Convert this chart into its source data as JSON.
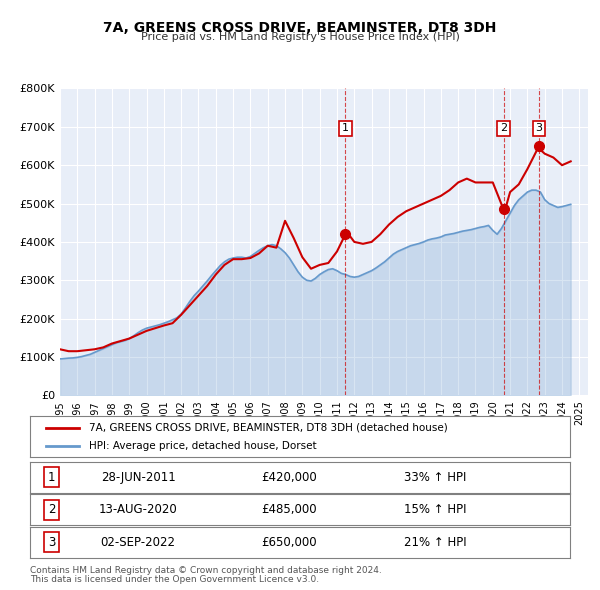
{
  "title": "7A, GREENS CROSS DRIVE, BEAMINSTER, DT8 3DH",
  "subtitle": "Price paid vs. HM Land Registry's House Price Index (HPI)",
  "ylabel": "",
  "background_color": "#ffffff",
  "plot_bg_color": "#e8eef8",
  "grid_color": "#ffffff",
  "red_line_color": "#cc0000",
  "blue_line_color": "#6699cc",
  "sale_marker_color": "#cc0000",
  "purchase_marker_color": "#cc0000",
  "ylim": [
    0,
    800000
  ],
  "yticks": [
    0,
    100000,
    200000,
    300000,
    400000,
    500000,
    600000,
    700000,
    800000
  ],
  "ytick_labels": [
    "£0",
    "£100K",
    "£200K",
    "£300K",
    "£400K",
    "£500K",
    "£600K",
    "£700K",
    "£800K"
  ],
  "xlim_start": 1995.0,
  "xlim_end": 2025.5,
  "xticks": [
    1995,
    1996,
    1997,
    1998,
    1999,
    2000,
    2001,
    2002,
    2003,
    2004,
    2005,
    2006,
    2007,
    2008,
    2009,
    2010,
    2011,
    2012,
    2013,
    2014,
    2015,
    2016,
    2017,
    2018,
    2019,
    2020,
    2021,
    2022,
    2023,
    2024,
    2025
  ],
  "sales": [
    {
      "year": 2011.49,
      "price": 420000,
      "label": "1",
      "hpi_pct": "33% ↑ HPI",
      "date": "28-JUN-2011"
    },
    {
      "year": 2020.62,
      "price": 485000,
      "label": "2",
      "hpi_pct": "15% ↑ HPI",
      "date": "13-AUG-2020"
    },
    {
      "year": 2022.67,
      "price": 650000,
      "label": "3",
      "hpi_pct": "21% ↑ HPI",
      "date": "02-SEP-2022"
    }
  ],
  "legend_line1": "7A, GREENS CROSS DRIVE, BEAMINSTER, DT8 3DH (detached house)",
  "legend_line2": "HPI: Average price, detached house, Dorset",
  "footer1": "Contains HM Land Registry data © Crown copyright and database right 2024.",
  "footer2": "This data is licensed under the Open Government Licence v3.0.",
  "hpi_data": {
    "years": [
      1995.0,
      1995.25,
      1995.5,
      1995.75,
      1996.0,
      1996.25,
      1996.5,
      1996.75,
      1997.0,
      1997.25,
      1997.5,
      1997.75,
      1998.0,
      1998.25,
      1998.5,
      1998.75,
      1999.0,
      1999.25,
      1999.5,
      1999.75,
      2000.0,
      2000.25,
      2000.5,
      2000.75,
      2001.0,
      2001.25,
      2001.5,
      2001.75,
      2002.0,
      2002.25,
      2002.5,
      2002.75,
      2003.0,
      2003.25,
      2003.5,
      2003.75,
      2004.0,
      2004.25,
      2004.5,
      2004.75,
      2005.0,
      2005.25,
      2005.5,
      2005.75,
      2006.0,
      2006.25,
      2006.5,
      2006.75,
      2007.0,
      2007.25,
      2007.5,
      2007.75,
      2008.0,
      2008.25,
      2008.5,
      2008.75,
      2009.0,
      2009.25,
      2009.5,
      2009.75,
      2010.0,
      2010.25,
      2010.5,
      2010.75,
      2011.0,
      2011.25,
      2011.5,
      2011.75,
      2012.0,
      2012.25,
      2012.5,
      2012.75,
      2013.0,
      2013.25,
      2013.5,
      2013.75,
      2014.0,
      2014.25,
      2014.5,
      2014.75,
      2015.0,
      2015.25,
      2015.5,
      2015.75,
      2016.0,
      2016.25,
      2016.5,
      2016.75,
      2017.0,
      2017.25,
      2017.5,
      2017.75,
      2018.0,
      2018.25,
      2018.5,
      2018.75,
      2019.0,
      2019.25,
      2019.5,
      2019.75,
      2020.0,
      2020.25,
      2020.5,
      2020.75,
      2021.0,
      2021.25,
      2021.5,
      2021.75,
      2022.0,
      2022.25,
      2022.5,
      2022.75,
      2023.0,
      2023.25,
      2023.5,
      2023.75,
      2024.0,
      2024.25,
      2024.5
    ],
    "values": [
      95000,
      96000,
      97000,
      97500,
      99000,
      101000,
      104000,
      107000,
      112000,
      117000,
      122000,
      127000,
      132000,
      137000,
      140000,
      143000,
      148000,
      155000,
      163000,
      170000,
      175000,
      178000,
      181000,
      184000,
      188000,
      192000,
      197000,
      202000,
      212000,
      228000,
      245000,
      260000,
      272000,
      285000,
      298000,
      312000,
      325000,
      338000,
      348000,
      355000,
      358000,
      360000,
      360000,
      358000,
      362000,
      370000,
      378000,
      385000,
      390000,
      393000,
      390000,
      382000,
      372000,
      358000,
      340000,
      322000,
      308000,
      300000,
      298000,
      305000,
      315000,
      322000,
      328000,
      330000,
      325000,
      318000,
      315000,
      310000,
      308000,
      310000,
      315000,
      320000,
      325000,
      332000,
      340000,
      348000,
      358000,
      368000,
      375000,
      380000,
      385000,
      390000,
      393000,
      396000,
      400000,
      405000,
      408000,
      410000,
      413000,
      418000,
      420000,
      422000,
      425000,
      428000,
      430000,
      432000,
      435000,
      438000,
      440000,
      443000,
      430000,
      420000,
      435000,
      455000,
      475000,
      495000,
      510000,
      520000,
      530000,
      535000,
      535000,
      530000,
      510000,
      500000,
      495000,
      490000,
      492000,
      495000,
      498000
    ]
  },
  "property_data": {
    "years": [
      1995.0,
      1995.5,
      1996.0,
      1997.0,
      1997.5,
      1998.0,
      1999.0,
      2000.0,
      2001.0,
      2001.5,
      2002.0,
      2002.5,
      2003.0,
      2003.5,
      2004.0,
      2004.5,
      2005.0,
      2005.5,
      2006.0,
      2006.5,
      2007.0,
      2007.5,
      2008.0,
      2008.5,
      2009.0,
      2009.5,
      2010.0,
      2010.5,
      2011.0,
      2011.49,
      2011.75,
      2012.0,
      2012.5,
      2013.0,
      2013.5,
      2014.0,
      2014.5,
      2015.0,
      2015.5,
      2016.0,
      2016.5,
      2017.0,
      2017.5,
      2018.0,
      2018.25,
      2018.5,
      2019.0,
      2019.5,
      2020.0,
      2020.62,
      2020.75,
      2021.0,
      2021.5,
      2022.0,
      2022.67,
      2022.75,
      2023.0,
      2023.5,
      2024.0,
      2024.5
    ],
    "values": [
      120000,
      115000,
      115000,
      120000,
      125000,
      135000,
      148000,
      168000,
      182000,
      188000,
      210000,
      235000,
      260000,
      285000,
      315000,
      340000,
      355000,
      355000,
      358000,
      370000,
      390000,
      385000,
      455000,
      410000,
      360000,
      330000,
      340000,
      345000,
      375000,
      420000,
      415000,
      400000,
      395000,
      400000,
      420000,
      445000,
      465000,
      480000,
      490000,
      500000,
      510000,
      520000,
      535000,
      555000,
      560000,
      565000,
      555000,
      555000,
      555000,
      485000,
      490000,
      530000,
      550000,
      590000,
      650000,
      640000,
      630000,
      620000,
      600000,
      610000
    ]
  }
}
